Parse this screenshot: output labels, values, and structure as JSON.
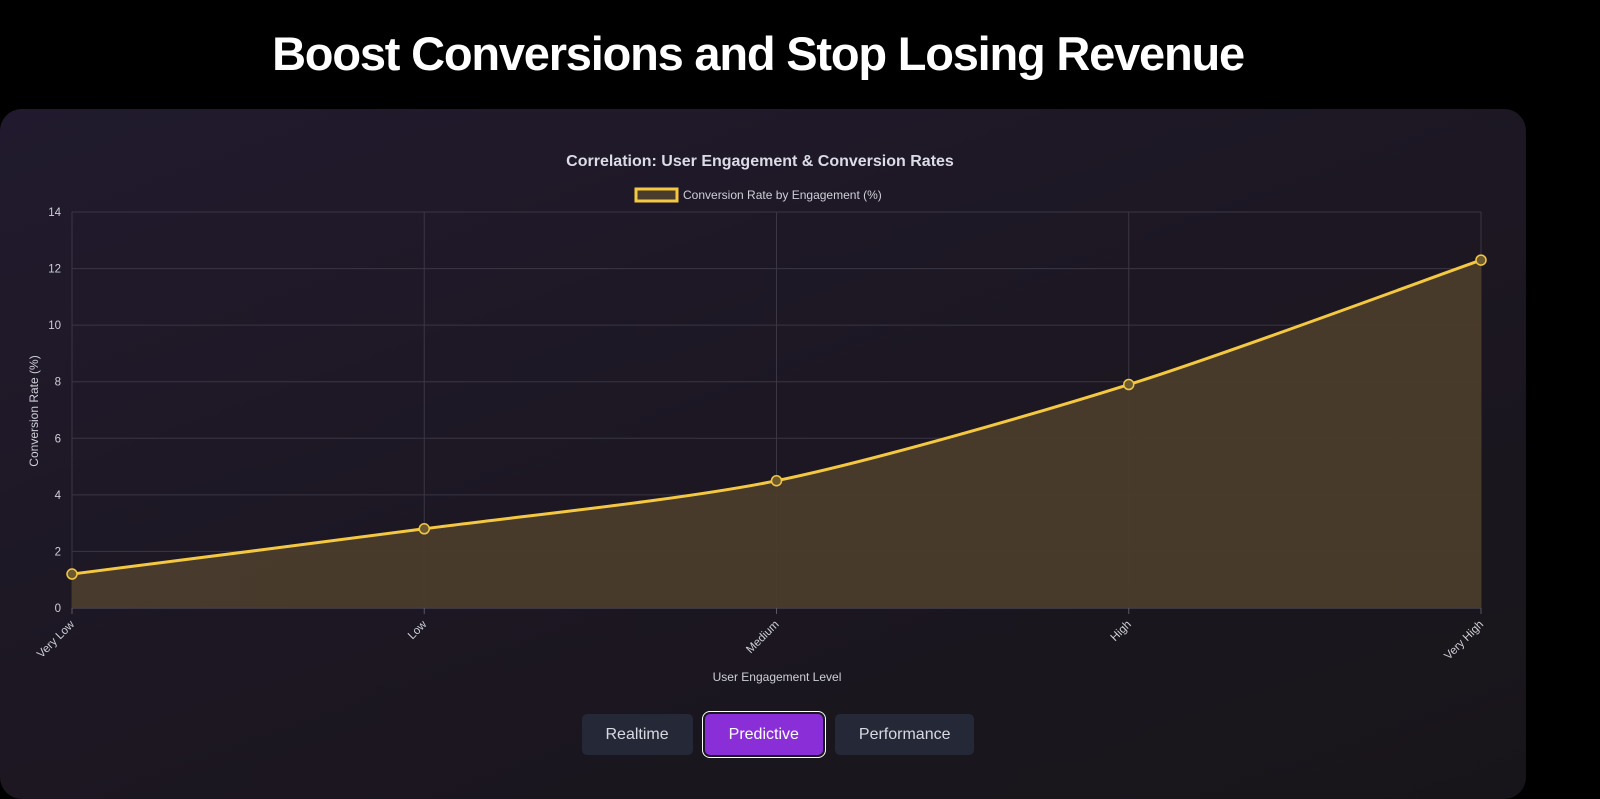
{
  "page": {
    "title": "Boost Conversions and Stop Losing Revenue"
  },
  "chart_data": {
    "type": "line",
    "title": "Correlation: User Engagement & Conversion Rates",
    "xlabel": "User Engagement Level",
    "ylabel": "Conversion Rate (%)",
    "categories": [
      "Very Low",
      "Low",
      "Medium",
      "High",
      "Very High"
    ],
    "series": [
      {
        "name": "Conversion Rate by Engagement (%)",
        "values": [
          1.2,
          2.8,
          4.5,
          7.9,
          12.3
        ],
        "color": "#f5c842",
        "fill": true
      }
    ],
    "ylim": [
      0,
      14
    ],
    "yticks": [
      0,
      2,
      4,
      6,
      8,
      10,
      12,
      14
    ],
    "grid": true,
    "legend": "top-center"
  },
  "tabs": [
    {
      "label": "Realtime",
      "active": false
    },
    {
      "label": "Predictive",
      "active": true
    },
    {
      "label": "Performance",
      "active": false
    }
  ],
  "colors": {
    "accent": "#8a2fd8",
    "line": "#f5c842",
    "background": "#000000"
  }
}
